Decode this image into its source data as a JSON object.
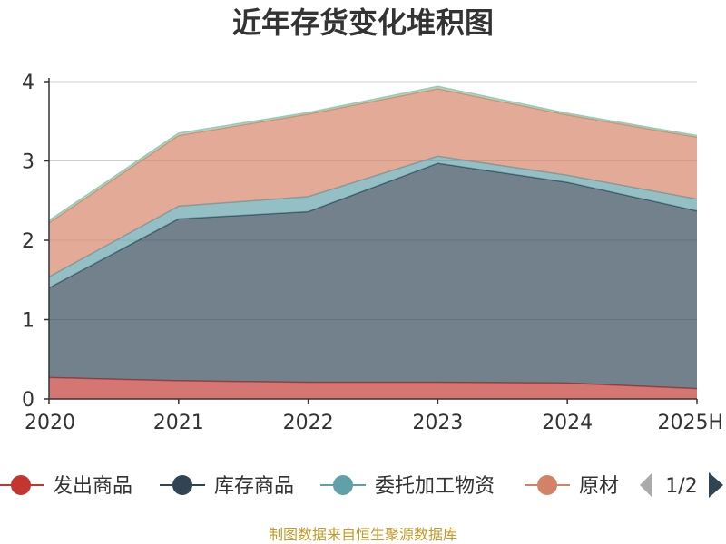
{
  "chart_data": {
    "type": "area",
    "stacked": true,
    "title": "近年存货变化堆积图",
    "x": [
      "2020",
      "2021",
      "2022",
      "2023",
      "2024",
      "2025H"
    ],
    "ylim": [
      0,
      4
    ],
    "yticks": [
      "0",
      "1",
      "2",
      "3",
      "4"
    ],
    "grid": true,
    "series": [
      {
        "name": "发出商品",
        "color": "#c23531",
        "values": [
          0.27,
          0.23,
          0.21,
          0.21,
          0.2,
          0.13
        ]
      },
      {
        "name": "库存商品",
        "color": "#2f4554",
        "values": [
          1.13,
          2.04,
          2.15,
          2.76,
          2.53,
          2.24
        ]
      },
      {
        "name": "委托加工物资",
        "color": "#61a0a8",
        "values": [
          0.14,
          0.16,
          0.19,
          0.09,
          0.09,
          0.15
        ]
      },
      {
        "name": "原材料",
        "color": "#d48265",
        "values": [
          0.68,
          0.89,
          1.04,
          0.85,
          0.76,
          0.78
        ]
      },
      {
        "name": "",
        "color": "#91c7ae",
        "values": [
          0.03,
          0.03,
          0.02,
          0.03,
          0.02,
          0.02
        ]
      }
    ],
    "legend": {
      "position": "bottom",
      "visible_items": [
        "发出商品",
        "库存商品",
        "委托加工物资",
        "原材"
      ],
      "page_indicator": "1/2"
    },
    "footer": "制图数据来自恒生聚源数据库"
  }
}
